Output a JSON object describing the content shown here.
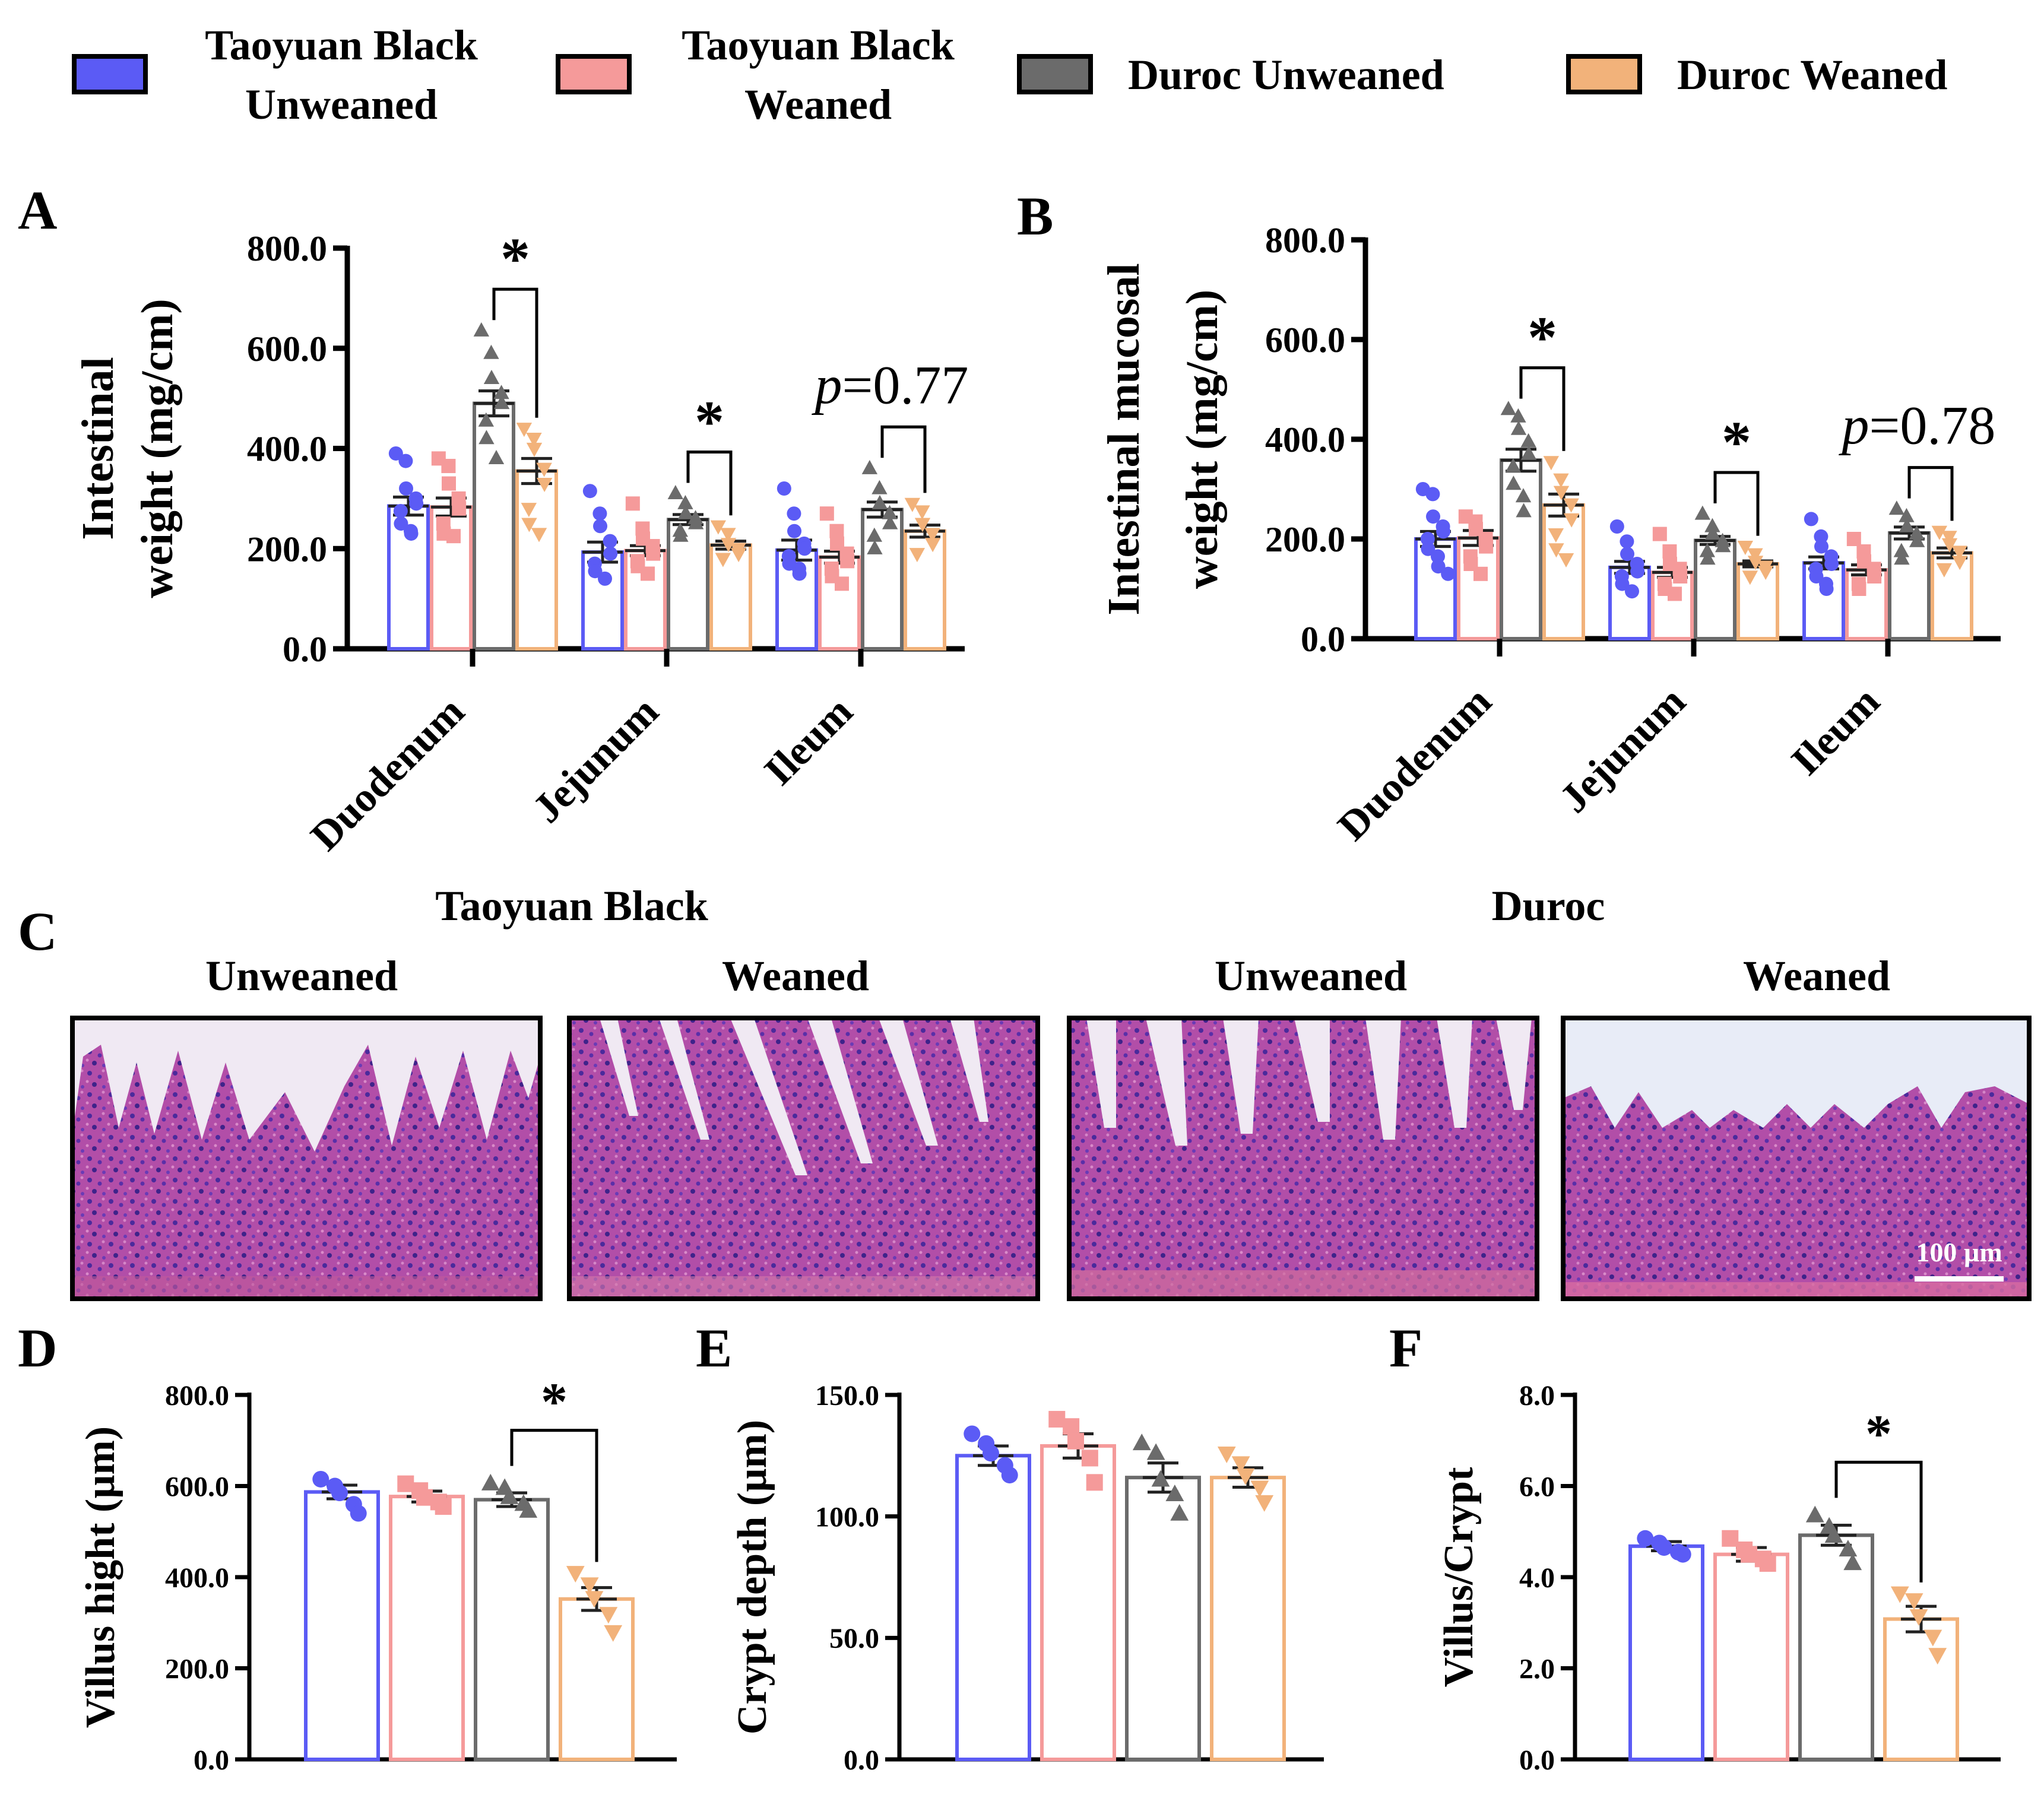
{
  "legend": {
    "items": [
      {
        "lines": [
          "Taoyuan Black",
          "Unweaned"
        ],
        "color": "#5b5bf5"
      },
      {
        "lines": [
          "Taoyuan Black",
          "Weaned"
        ],
        "color": "#f59a9a"
      },
      {
        "lines": [
          "Duroc Unweaned"
        ],
        "color": "#6b6b6b"
      },
      {
        "lines": [
          "Duroc Weaned"
        ],
        "color": "#f2b27a"
      }
    ]
  },
  "groups": [
    {
      "name": "Taoyuan Black Unweaned",
      "color": "#5b5bf5",
      "marker": "circle"
    },
    {
      "name": "Taoyuan Black Weaned",
      "color": "#f59a9a",
      "marker": "square"
    },
    {
      "name": "Duroc Unweaned",
      "color": "#6b6b6b",
      "marker": "triangle-up"
    },
    {
      "name": "Duroc Weaned",
      "color": "#f2b27a",
      "marker": "triangle-down"
    }
  ],
  "chart_data": [
    {
      "panel": "A",
      "type": "bar",
      "ylabel": [
        "Intestinal",
        "weight (mg/cm)"
      ],
      "ylim": [
        0,
        800
      ],
      "yticks": [
        "0.0",
        "200.0",
        "400.0",
        "600.0",
        "800.0"
      ],
      "categories": [
        "Duodenum",
        "Jejunum",
        "Ileum"
      ],
      "series": [
        {
          "name": "Taoyuan Black Unweaned",
          "values": [
            285,
            193,
            197
          ],
          "sem": [
            18,
            20,
            20
          ],
          "points": [
            [
              390,
              375,
              320,
              300,
              290,
              275,
              250,
              235,
              230
            ],
            [
              315,
              270,
              245,
              215,
              190,
              170,
              155,
              140
            ],
            [
              320,
              270,
              235,
              210,
              200,
              185,
              170,
              160,
              150
            ]
          ]
        },
        {
          "name": "Taoyuan Black Weaned",
          "values": [
            283,
            196,
            183
          ],
          "sem": [
            18,
            10,
            12
          ],
          "points": [
            [
              380,
              365,
              330,
              300,
              280,
              250,
              230,
              225
            ],
            [
              290,
              240,
              220,
              205,
              190,
              175,
              165,
              150
            ],
            [
              270,
              235,
              210,
              190,
              175,
              160,
              145,
              130
            ]
          ]
        },
        {
          "name": "Duroc Unweaned",
          "values": [
            490,
            258,
            278
          ],
          "sem": [
            25,
            10,
            15
          ],
          "points": [
            [
              635,
              590,
              540,
              510,
              490,
              455,
              420,
              380
            ],
            [
              310,
              290,
              270,
              260,
              250,
              235,
              225
            ],
            [
              360,
              320,
              290,
              270,
              250,
              225,
              200
            ]
          ]
        },
        {
          "name": "Duroc Weaned",
          "values": [
            355,
            207,
            235
          ],
          "sem": [
            25,
            8,
            12
          ],
          "points": [
            [
              440,
              420,
              400,
              360,
              330,
              280,
              250,
              230
            ],
            [
              245,
              230,
              210,
              200,
              190,
              180
            ],
            [
              290,
              275,
              250,
              230,
              210,
              190
            ]
          ]
        }
      ],
      "annotations": [
        {
          "category": "Duodenum",
          "label": "*"
        },
        {
          "category": "Jejunum",
          "label": "*"
        },
        {
          "category": "Ileum",
          "label": "p=0.77",
          "italic_prefix": "p",
          "rest": "=0.77"
        }
      ]
    },
    {
      "panel": "B",
      "type": "bar",
      "ylabel": [
        "Intestinal mucosal",
        "weight (mg/cm)"
      ],
      "ylim": [
        0,
        800
      ],
      "yticks": [
        "0.0",
        "200.0",
        "400.0",
        "600.0",
        "800.0"
      ],
      "categories": [
        "Duodenum",
        "Jejunum",
        "Ileum"
      ],
      "series": [
        {
          "name": "Taoyuan Black Unweaned",
          "values": [
            200,
            143,
            152
          ],
          "sem": [
            15,
            12,
            12
          ],
          "points": [
            [
              300,
              290,
              245,
              225,
              215,
              200,
              180,
              165,
              145,
              130
            ],
            [
              225,
              195,
              170,
              150,
              135,
              125,
              110,
              95
            ],
            [
              240,
              205,
              185,
              165,
              150,
              140,
              125,
              110,
              100
            ]
          ]
        },
        {
          "name": "Taoyuan Black Weaned",
          "values": [
            202,
            133,
            138
          ],
          "sem": [
            15,
            10,
            10
          ],
          "points": [
            [
              245,
              235,
              220,
              200,
              185,
              165,
              150,
              130
            ],
            [
              210,
              175,
              150,
              140,
              125,
              110,
              100,
              90
            ],
            [
              200,
              175,
              155,
              140,
              125,
              110,
              100
            ]
          ]
        },
        {
          "name": "Duroc Unweaned",
          "values": [
            358,
            197,
            212
          ],
          "sem": [
            22,
            8,
            12
          ],
          "points": [
            [
              460,
              445,
              420,
              395,
              370,
              345,
              310,
              285,
              255
            ],
            [
              250,
              225,
              210,
              195,
              185,
              175,
              160
            ],
            [
              260,
              245,
              225,
              210,
              195,
              175,
              160
            ]
          ]
        },
        {
          "name": "Duroc Weaned",
          "values": [
            268,
            150,
            172
          ],
          "sem": [
            22,
            6,
            10
          ],
          "points": [
            [
              355,
              320,
              295,
              270,
              240,
              210,
              180,
              160
            ],
            [
              185,
              170,
              155,
              145,
              135,
              125
            ],
            [
              215,
              205,
              190,
              175,
              155,
              140
            ]
          ]
        }
      ],
      "annotations": [
        {
          "category": "Duodenum",
          "label": "*"
        },
        {
          "category": "Jejunum",
          "label": "*"
        },
        {
          "category": "Ileum",
          "label": "p=0.78",
          "italic_prefix": "p",
          "rest": "=0.78"
        }
      ]
    },
    {
      "panel": "D",
      "type": "bar",
      "ylabel": [
        "Villus hight (µm)"
      ],
      "ylim": [
        0,
        800
      ],
      "yticks": [
        "0.0",
        "200.0",
        "400.0",
        "600.0",
        "800.0"
      ],
      "categories": [
        ""
      ],
      "series": [
        {
          "name": "Taoyuan Black Unweaned",
          "values": [
            587
          ],
          "sem": [
            15
          ],
          "points": [
            [
              615,
              600,
              585,
              560,
              540
            ]
          ]
        },
        {
          "name": "Taoyuan Black Weaned",
          "values": [
            577
          ],
          "sem": [
            12
          ],
          "points": [
            [
              605,
              590,
              575,
              565,
              555
            ]
          ]
        },
        {
          "name": "Duroc Unweaned",
          "values": [
            570
          ],
          "sem": [
            15
          ],
          "points": [
            [
              605,
              595,
              575,
              560,
              545
            ]
          ]
        },
        {
          "name": "Duroc Weaned",
          "values": [
            352
          ],
          "sem": [
            25
          ],
          "points": [
            [
              410,
              385,
              355,
              320,
              280
            ]
          ]
        }
      ],
      "annotations": [
        {
          "from_series": 2,
          "to_series": 3,
          "label": "*"
        }
      ]
    },
    {
      "panel": "E",
      "type": "bar",
      "ylabel": [
        "Crypt depth (µm)"
      ],
      "ylim": [
        0,
        150
      ],
      "yticks": [
        "0.0",
        "50.0",
        "100.0",
        "150.0"
      ],
      "categories": [
        ""
      ],
      "series": [
        {
          "name": "Taoyuan Black Unweaned",
          "values": [
            125
          ],
          "sem": [
            4
          ],
          "points": [
            [
              134,
              130,
              126,
              121,
              117
            ]
          ]
        },
        {
          "name": "Taoyuan Black Weaned",
          "values": [
            129
          ],
          "sem": [
            5
          ],
          "points": [
            [
              140,
              137,
              131,
              124,
              114
            ]
          ]
        },
        {
          "name": "Duroc Unweaned",
          "values": [
            116
          ],
          "sem": [
            6
          ],
          "points": [
            [
              130,
              126,
              115,
              109,
              101
            ]
          ]
        },
        {
          "name": "Duroc Weaned",
          "values": [
            116
          ],
          "sem": [
            4
          ],
          "points": [
            [
              126,
              122,
              117,
              112,
              106
            ]
          ]
        }
      ],
      "annotations": []
    },
    {
      "panel": "F",
      "type": "bar",
      "ylabel": [
        "Villus/Crypt"
      ],
      "ylim": [
        0,
        8
      ],
      "yticks": [
        "0.0",
        "2.0",
        "4.0",
        "6.0",
        "8.0"
      ],
      "categories": [
        ""
      ],
      "series": [
        {
          "name": "Taoyuan Black Unweaned",
          "values": [
            4.68
          ],
          "sem": [
            0.1
          ],
          "points": [
            [
              4.85,
              4.75,
              4.65,
              4.55,
              4.5
            ]
          ]
        },
        {
          "name": "Taoyuan Black Weaned",
          "values": [
            4.5
          ],
          "sem": [
            0.15
          ],
          "points": [
            [
              4.85,
              4.6,
              4.5,
              4.4,
              4.3
            ]
          ]
        },
        {
          "name": "Duroc Unweaned",
          "values": [
            4.92
          ],
          "sem": [
            0.22
          ],
          "points": [
            [
              5.35,
              5.1,
              4.9,
              4.6,
              4.3
            ]
          ]
        },
        {
          "name": "Duroc Weaned",
          "values": [
            3.08
          ],
          "sem": [
            0.28
          ],
          "points": [
            [
              3.65,
              3.5,
              3.15,
              2.7,
              2.3
            ]
          ]
        }
      ],
      "annotations": [
        {
          "from_series": 2,
          "to_series": 3,
          "label": "*"
        }
      ]
    }
  ],
  "panel_c": {
    "letter": "C",
    "breeds": [
      "Taoyuan Black",
      "Duroc"
    ],
    "conditions": [
      "Unweaned",
      "Weaned",
      "Unweaned",
      "Weaned"
    ],
    "scale_bar": "100 µm"
  }
}
